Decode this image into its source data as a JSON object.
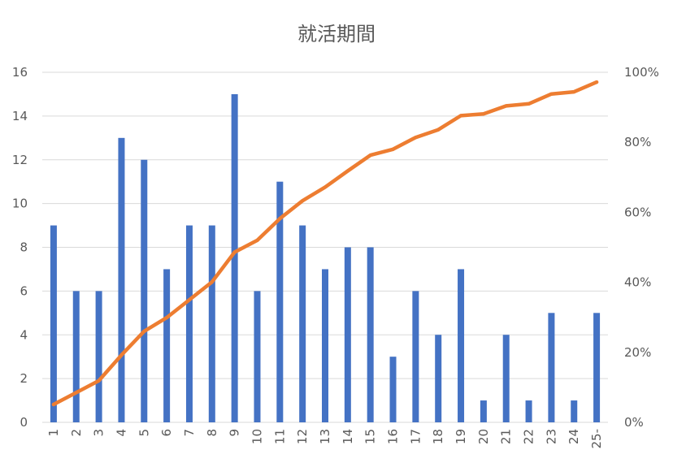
{
  "chart_data": {
    "type": "bar",
    "title": "就活期間",
    "categories": [
      "1",
      "2",
      "3",
      "4",
      "5",
      "6",
      "7",
      "8",
      "9",
      "10",
      "11",
      "12",
      "13",
      "14",
      "15",
      "16",
      "17",
      "18",
      "19",
      "20",
      "21",
      "22",
      "23",
      "24",
      "25-"
    ],
    "series": [
      {
        "type": "bar",
        "axis": "left",
        "color": "#4472c4",
        "values": [
          9,
          6,
          6,
          13,
          12,
          7,
          9,
          9,
          15,
          6,
          11,
          9,
          7,
          8,
          8,
          3,
          6,
          4,
          7,
          1,
          4,
          1,
          5,
          1,
          5
        ]
      },
      {
        "type": "line",
        "axis": "right",
        "color": "#ed7d31",
        "values": [
          5.1,
          8.5,
          11.9,
          19.2,
          26.0,
          29.9,
          35.0,
          40.1,
          48.6,
          52.0,
          58.2,
          63.3,
          67.2,
          71.8,
          76.3,
          78.0,
          81.4,
          83.6,
          87.6,
          88.1,
          90.4,
          91.0,
          93.8,
          94.4,
          97.2
        ]
      }
    ],
    "y_left": {
      "ylim": [
        0,
        16
      ],
      "ticks": [
        "0",
        "2",
        "4",
        "6",
        "8",
        "10",
        "12",
        "14",
        "16"
      ]
    },
    "y_right": {
      "ylim": [
        0,
        100
      ],
      "ticks": [
        "0%",
        "20%",
        "40%",
        "60%",
        "80%",
        "100%"
      ]
    },
    "xlabel": "",
    "ylabel": "",
    "grid": true,
    "legend": "none"
  }
}
